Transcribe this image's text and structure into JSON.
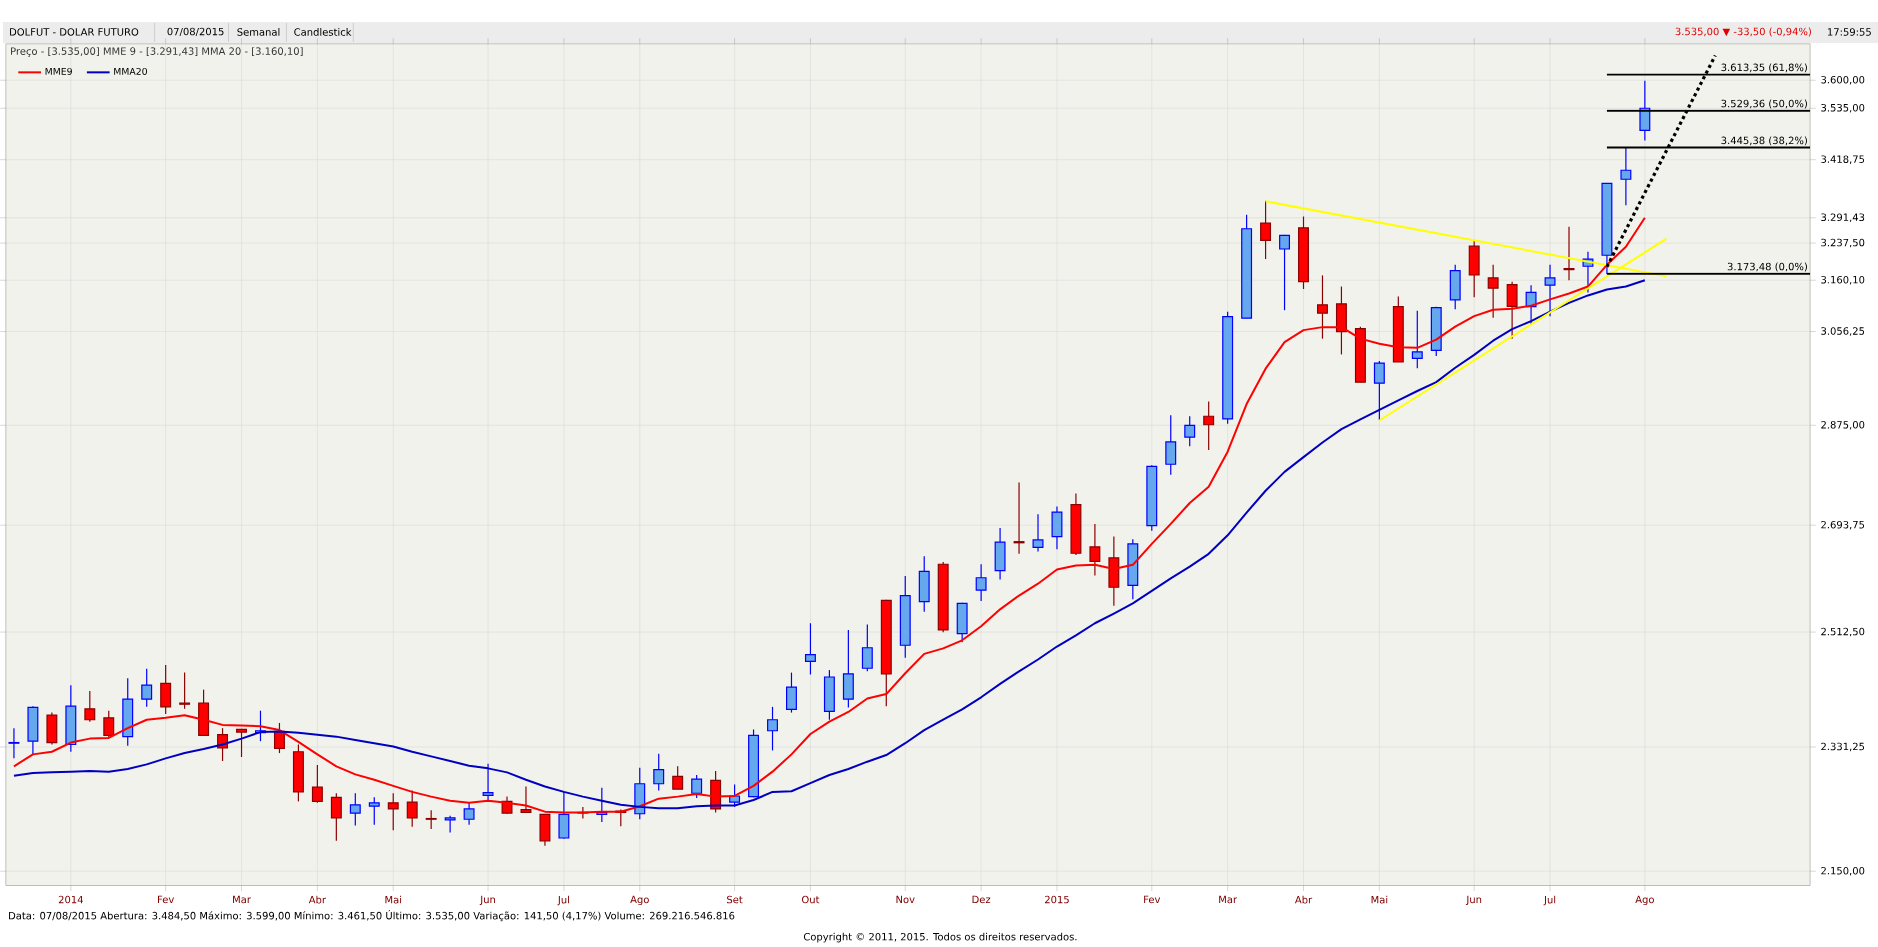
{
  "chart_data": {
    "type": "candlestick",
    "title": "DOLFUT - DOLAR FUTURO",
    "annotations": [
      "07/08/2015",
      "Semanal",
      "Candlestick",
      "3.535,00 ▼ -33,50 (-0,94%)",
      "17:59:55",
      "Preço - [3.535,00]   MME 9 - [3.291,43]   MMA 20 - [3.160,10]",
      "Data: 07/08/2015   Abertura: 3.484,50   Máximo: 3.599,00   Mínimo: 3.461,50   Último: 3.535,00   Variação: 141,50 (4,17%)   Volume: 269.216.546.816",
      "Copyright © 2011, 2015. Todos os direitos reservados.",
      {
        "text": "3.613,35 (61,8%)",
        "x": "2015-10-07",
        "y": 3613.35
      },
      {
        "text": "3.529,36 (50,0%)",
        "x": "2015-10-07",
        "y": 3529.36
      },
      {
        "text": "3.445,38 (38,2%)",
        "x": "2015-10-07",
        "y": 3445.38
      },
      {
        "text": "3.173,48 (0,0%)",
        "x": "2015-10-07",
        "y": 3173.48
      }
    ],
    "x": [
      "2013-12-13",
      "2013-12-20",
      "2013-12-27",
      "2014-01-03",
      "2014-01-10",
      "2014-01-17",
      "2014-01-24",
      "2014-01-31",
      "2014-02-07",
      "2014-02-14",
      "2014-02-21",
      "2014-02-28",
      "2014-03-07",
      "2014-03-14",
      "2014-03-21",
      "2014-03-28",
      "2014-04-04",
      "2014-04-11",
      "2014-04-18",
      "2014-04-25",
      "2014-05-02",
      "2014-05-09",
      "2014-05-16",
      "2014-05-23",
      "2014-05-30",
      "2014-06-06",
      "2014-06-13",
      "2014-06-20",
      "2014-06-27",
      "2014-07-04",
      "2014-07-11",
      "2014-07-18",
      "2014-07-25",
      "2014-08-01",
      "2014-08-08",
      "2014-08-15",
      "2014-08-22",
      "2014-08-29",
      "2014-09-05",
      "2014-09-12",
      "2014-09-19",
      "2014-09-26",
      "2014-10-03",
      "2014-10-10",
      "2014-10-17",
      "2014-10-24",
      "2014-10-31",
      "2014-11-07",
      "2014-11-14",
      "2014-11-21",
      "2014-11-28",
      "2014-12-05",
      "2014-12-12",
      "2014-12-19",
      "2014-12-26",
      "2015-01-02",
      "2015-01-09",
      "2015-01-16",
      "2015-01-23",
      "2015-01-30",
      "2015-02-06",
      "2015-02-13",
      "2015-02-20",
      "2015-02-27",
      "2015-03-06",
      "2015-03-13",
      "2015-03-20",
      "2015-03-27",
      "2015-04-03",
      "2015-04-10",
      "2015-04-17",
      "2015-04-24",
      "2015-05-01",
      "2015-05-08",
      "2015-05-15",
      "2015-05-22",
      "2015-05-29",
      "2015-06-05",
      "2015-06-12",
      "2015-06-19",
      "2015-06-26",
      "2015-07-03",
      "2015-07-10",
      "2015-07-17",
      "2015-07-24",
      "2015-07-31",
      "2015-08-07"
    ],
    "ohlc": [
      [
        2337,
        2360,
        2314,
        2338
      ],
      [
        2340,
        2394,
        2319,
        2392
      ],
      [
        2380,
        2384,
        2335,
        2338
      ],
      [
        2335,
        2427,
        2324,
        2394
      ],
      [
        2390,
        2418,
        2370,
        2373
      ],
      [
        2376,
        2387,
        2346,
        2349
      ],
      [
        2347,
        2438,
        2333,
        2405
      ],
      [
        2405,
        2453,
        2393,
        2427
      ],
      [
        2430,
        2459,
        2382,
        2393
      ],
      [
        2399,
        2447,
        2390,
        2397
      ],
      [
        2399,
        2420,
        2348,
        2349
      ],
      [
        2350,
        2360,
        2310,
        2330
      ],
      [
        2358,
        2359,
        2316,
        2354
      ],
      [
        2353,
        2387,
        2340,
        2356
      ],
      [
        2355,
        2368,
        2322,
        2329
      ],
      [
        2324,
        2335,
        2250,
        2264
      ],
      [
        2271,
        2304,
        2248,
        2250
      ],
      [
        2256,
        2262,
        2193,
        2226
      ],
      [
        2233,
        2262,
        2215,
        2245
      ],
      [
        2243,
        2256,
        2216,
        2248
      ],
      [
        2248,
        2262,
        2208,
        2239
      ],
      [
        2249,
        2266,
        2213,
        2226
      ],
      [
        2225,
        2237,
        2210,
        2224
      ],
      [
        2223,
        2229,
        2205,
        2226
      ],
      [
        2224,
        2249,
        2216,
        2239
      ],
      [
        2259,
        2306,
        2252,
        2263
      ],
      [
        2250,
        2257,
        2232,
        2233
      ],
      [
        2238,
        2272,
        2233,
        2234
      ],
      [
        2231,
        2231,
        2186,
        2193
      ],
      [
        2197,
        2264,
        2196,
        2231
      ],
      [
        2234,
        2242,
        2225,
        2233
      ],
      [
        2231,
        2270,
        2220,
        2234
      ],
      [
        2236,
        2238,
        2214,
        2234
      ],
      [
        2232,
        2300,
        2224,
        2276
      ],
      [
        2276,
        2321,
        2266,
        2297
      ],
      [
        2287,
        2302,
        2268,
        2268
      ],
      [
        2262,
        2289,
        2255,
        2283
      ],
      [
        2281,
        2295,
        2234,
        2239
      ],
      [
        2249,
        2275,
        2242,
        2258
      ],
      [
        2257,
        2358,
        2256,
        2349
      ],
      [
        2356,
        2393,
        2326,
        2373
      ],
      [
        2389,
        2447,
        2384,
        2424
      ],
      [
        2465,
        2527,
        2444,
        2476
      ],
      [
        2386,
        2451,
        2373,
        2440
      ],
      [
        2405,
        2516,
        2392,
        2445
      ],
      [
        2454,
        2525,
        2449,
        2487
      ],
      [
        2565,
        2566,
        2394,
        2445
      ],
      [
        2491,
        2606,
        2471,
        2573
      ],
      [
        2563,
        2640,
        2546,
        2614
      ],
      [
        2626,
        2630,
        2512,
        2516
      ],
      [
        2510,
        2561,
        2496,
        2560
      ],
      [
        2582,
        2626,
        2564,
        2603
      ],
      [
        2615,
        2689,
        2600,
        2664
      ],
      [
        2665,
        2770,
        2644,
        2663
      ],
      [
        2655,
        2713,
        2648,
        2668
      ],
      [
        2674,
        2727,
        2652,
        2717
      ],
      [
        2730,
        2750,
        2642,
        2645
      ],
      [
        2656,
        2696,
        2607,
        2631
      ],
      [
        2637,
        2674,
        2556,
        2587
      ],
      [
        2590,
        2669,
        2567,
        2661
      ],
      [
        2693,
        2801,
        2684,
        2799
      ],
      [
        2803,
        2894,
        2784,
        2844
      ],
      [
        2853,
        2892,
        2836,
        2875
      ],
      [
        2892,
        2920,
        2829,
        2876
      ],
      [
        2887,
        3096,
        2878,
        3086
      ],
      [
        3083,
        3298,
        3083,
        3268
      ],
      [
        3280,
        3328,
        3204,
        3243
      ],
      [
        3225,
        3255,
        3099,
        3254
      ],
      [
        3270,
        3294,
        3142,
        3157
      ],
      [
        3110,
        3170,
        3042,
        3093
      ],
      [
        3112,
        3147,
        3011,
        3056
      ],
      [
        3062,
        3066,
        2957,
        2957
      ],
      [
        2955,
        2998,
        2885,
        2994
      ],
      [
        3106,
        3127,
        2996,
        2996
      ],
      [
        3003,
        3098,
        2984,
        3016
      ],
      [
        3019,
        3106,
        3008,
        3104
      ],
      [
        3120,
        3192,
        3101,
        3180
      ],
      [
        3231,
        3242,
        3125,
        3171
      ],
      [
        3165,
        3192,
        3084,
        3144
      ],
      [
        3151,
        3157,
        3042,
        3107
      ],
      [
        3106,
        3150,
        3070,
        3135
      ],
      [
        3150,
        3192,
        3087,
        3165
      ],
      [
        3184,
        3272,
        3160,
        3182
      ],
      [
        3189,
        3219,
        3135,
        3204
      ],
      [
        3212,
        3366,
        3173,
        3366
      ],
      [
        3375,
        3445,
        3318,
        3395
      ],
      [
        3484.5,
        3599,
        3461.5,
        3535
      ]
    ],
    "series": [
      {
        "name": "MME9",
        "type": "line",
        "color": "#ff0000",
        "values": [
          2302,
          2320,
          2324,
          2338,
          2344,
          2345,
          2360,
          2373,
          2376,
          2380,
          2373,
          2365,
          2364,
          2363,
          2357,
          2339,
          2320,
          2302,
          2290,
          2282,
          2273,
          2264,
          2257,
          2251,
          2248,
          2251,
          2248,
          2244,
          2235,
          2234,
          2234,
          2235,
          2235,
          2243,
          2254,
          2257,
          2261,
          2257,
          2258,
          2273,
          2294,
          2320,
          2351,
          2370,
          2385,
          2406,
          2413,
          2446,
          2477,
          2486,
          2499,
          2522,
          2550,
          2573,
          2593,
          2617,
          2624,
          2625,
          2618,
          2625,
          2661,
          2696,
          2733,
          2762,
          2826,
          2915,
          2983,
          3035,
          3059,
          3065,
          3065,
          3042,
          3032,
          3025,
          3024,
          3040,
          3066,
          3087,
          3100,
          3102,
          3108,
          3121,
          3133,
          3147,
          3192,
          3230,
          3291.43
        ]
      },
      {
        "name": "MMA20",
        "type": "line",
        "color": "#0000c0",
        "values": [
          2288,
          2292,
          2293,
          2294,
          2295,
          2294,
          2298,
          2305,
          2314,
          2322,
          2328,
          2335,
          2344,
          2354,
          2355,
          2353,
          2350,
          2347,
          2342,
          2337,
          2332,
          2324,
          2317,
          2310,
          2303,
          2299,
          2293,
          2282,
          2272,
          2264,
          2257,
          2251,
          2245,
          2242,
          2240,
          2240,
          2243,
          2244,
          2244,
          2252,
          2264,
          2265,
          2277,
          2289,
          2298,
          2309,
          2319,
          2337,
          2357,
          2373,
          2389,
          2408,
          2429,
          2449,
          2468,
          2489,
          2507,
          2527,
          2543,
          2560,
          2581,
          2602,
          2622,
          2644,
          2676,
          2716,
          2755,
          2789,
          2816,
          2843,
          2868,
          2886,
          2904,
          2922,
          2940,
          2957,
          2985,
          3010,
          3038,
          3061,
          3077,
          3096,
          3114,
          3129,
          3141,
          3147,
          3160.1
        ]
      },
      {
        "type": "line",
        "color": "#ffff00",
        "x": [
          "2015-03-20",
          "2015-08-15"
        ],
        "values": [
          3327,
          3168
        ]
      },
      {
        "type": "line",
        "color": "#ffff00",
        "x": [
          "2015-05-01",
          "2015-08-15"
        ],
        "values": [
          2884,
          3247
        ]
      },
      {
        "type": "line",
        "color": "#000000",
        "line_style": "dotted",
        "x": [
          "2015-07-24",
          "2015-09-02"
        ],
        "values": [
          3188,
          3659
        ]
      },
      {
        "type": "line",
        "color": "#000000",
        "x": [
          "2015-07-24",
          "2015-10-07"
        ],
        "values": [
          3613.35,
          3613.35
        ]
      },
      {
        "type": "line",
        "color": "#000000",
        "x": [
          "2015-07-24",
          "2015-10-07"
        ],
        "values": [
          3529.36,
          3529.36
        ]
      },
      {
        "type": "line",
        "color": "#000000",
        "x": [
          "2015-07-24",
          "2015-10-07"
        ],
        "values": [
          3445.38,
          3445.38
        ]
      },
      {
        "type": "line",
        "color": "#000000",
        "x": [
          "2015-07-24",
          "2015-10-07"
        ],
        "values": [
          3173.48,
          3173.48
        ]
      }
    ],
    "xlim": [
      "2013-12-10",
      "2015-10-07"
    ],
    "xticks": [
      {
        "value": "2014-01-03",
        "label": "2014"
      },
      {
        "value": "2014-02-07",
        "label": "Fev"
      },
      {
        "value": "2014-03-07",
        "label": "Mar"
      },
      {
        "value": "2014-04-04",
        "label": "Abr"
      },
      {
        "value": "2014-05-02",
        "label": "Mai"
      },
      {
        "value": "2014-06-06",
        "label": "Jun"
      },
      {
        "value": "2014-07-04",
        "label": "Jul"
      },
      {
        "value": "2014-08-01",
        "label": "Ago"
      },
      {
        "value": "2014-09-05",
        "label": "Set"
      },
      {
        "value": "2014-10-03",
        "label": "Out"
      },
      {
        "value": "2014-11-07",
        "label": "Nov"
      },
      {
        "value": "2014-12-05",
        "label": "Dez"
      },
      {
        "value": "2015-01-02",
        "label": "2015"
      },
      {
        "value": "2015-02-06",
        "label": "Fev"
      },
      {
        "value": "2015-03-06",
        "label": "Mar"
      },
      {
        "value": "2015-04-03",
        "label": "Abr"
      },
      {
        "value": "2015-05-01",
        "label": "Mai"
      },
      {
        "value": "2015-06-05",
        "label": "Jun"
      },
      {
        "value": "2015-07-03",
        "label": "Jul"
      },
      {
        "value": "2015-08-07",
        "label": "Ago"
      }
    ],
    "ylim": [
      2130,
      3687
    ],
    "yticks": [
      {
        "value": 2150,
        "label": "2.150,00"
      },
      {
        "value": 2331.25,
        "label": "2.331,25"
      },
      {
        "value": 2512.5,
        "label": "2.512,50"
      },
      {
        "value": 2693.75,
        "label": "2.693,75"
      },
      {
        "value": 2875,
        "label": "2.875,00"
      },
      {
        "value": 3056.25,
        "label": "3.056,25"
      },
      {
        "value": 3160.1,
        "label": "3.160,10"
      },
      {
        "value": 3237.5,
        "label": "3.237,50"
      },
      {
        "value": 3291.43,
        "label": "3.291,43"
      },
      {
        "value": 3418.75,
        "label": "3.418,75"
      },
      {
        "value": 3535,
        "label": "3.535,00"
      },
      {
        "value": 3600,
        "label": "3.600,00"
      }
    ],
    "log": "y",
    "grid": true,
    "legend": "top left"
  }
}
